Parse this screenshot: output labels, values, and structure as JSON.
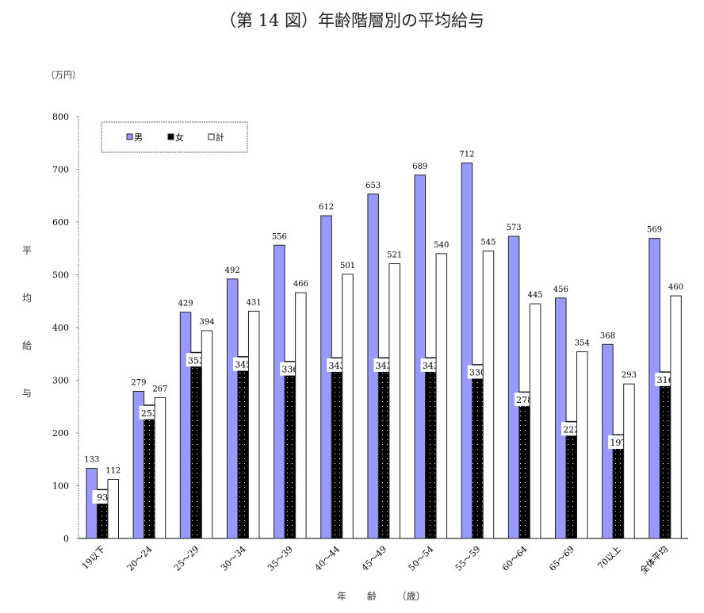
{
  "chart_data": {
    "type": "bar",
    "title": "（第 14 図）年齢階層別の平均給与",
    "unit": "（万円）",
    "ylabel": [
      "平",
      "均",
      "給",
      "与"
    ],
    "xlabel": "年 齢 （歳）",
    "ylim": [
      0,
      800
    ],
    "yticks": [
      0,
      100,
      200,
      300,
      400,
      500,
      600,
      700,
      800
    ],
    "grid": false,
    "legend": "top-left",
    "categories": [
      "19以下",
      "20〜24",
      "25〜29",
      "30〜34",
      "35〜39",
      "40〜44",
      "45〜49",
      "50〜54",
      "55〜59",
      "60〜64",
      "65〜69",
      "70以上",
      "全体平均"
    ],
    "series": [
      {
        "name": "男",
        "color": "#9999ff",
        "values": [
          133,
          279,
          429,
          492,
          556,
          612,
          653,
          689,
          712,
          573,
          456,
          368,
          569
        ]
      },
      {
        "name": "女",
        "color": "#000000",
        "values": [
          93,
          253,
          353,
          345,
          336,
          343,
          343,
          343,
          330,
          278,
          222,
          197,
          316
        ]
      },
      {
        "name": "計",
        "color": "#ffffff",
        "values": [
          112,
          267,
          394,
          431,
          466,
          501,
          521,
          540,
          545,
          445,
          354,
          293,
          460
        ]
      }
    ]
  }
}
